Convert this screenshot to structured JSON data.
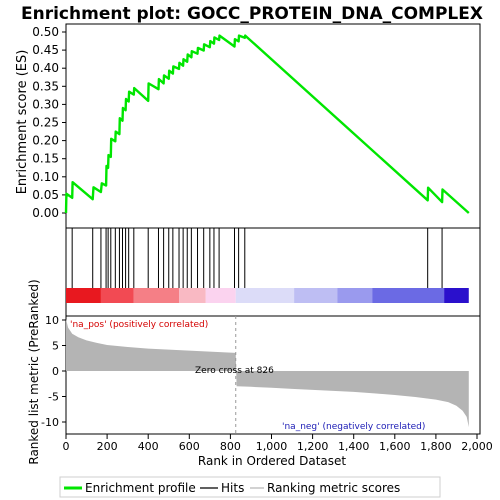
{
  "title": "Enrichment plot: GOCC_PROTEIN_DNA_COMPLEX",
  "chart_data": [
    {
      "type": "line",
      "panel": "enrichment",
      "ylabel": "Enrichment score (ES)",
      "ylim": [
        0,
        0.52
      ],
      "yticks": [
        0.0,
        0.05,
        0.1,
        0.15,
        0.2,
        0.25,
        0.3,
        0.35,
        0.4,
        0.45,
        0.5
      ],
      "ytick_labels": [
        "0.00",
        "0.05",
        "0.10",
        "0.15",
        "0.20",
        "0.25",
        "0.30",
        "0.35",
        "0.40",
        "0.45",
        "0.50"
      ],
      "xlim": [
        0,
        2000
      ],
      "line_color": "#00e600",
      "series": [
        {
          "x": [
            0,
            2,
            30,
            32,
            130,
            134,
            170,
            174,
            195,
            197,
            205,
            207,
            218,
            220,
            240,
            242,
            260,
            262,
            275,
            277,
            290,
            292,
            305,
            307,
            330,
            332,
            400,
            402,
            450,
            452,
            475,
            477,
            500,
            502,
            520,
            522,
            550,
            552,
            570,
            572,
            590,
            592,
            610,
            612,
            640,
            642,
            670,
            672,
            700,
            702,
            720,
            722,
            745,
            747,
            820,
            822,
            840,
            842,
            870,
            872,
            1760,
            1762,
            1830,
            1832,
            1960
          ],
          "y": [
            0.0,
            0.053,
            0.042,
            0.085,
            0.038,
            0.071,
            0.058,
            0.082,
            0.076,
            0.13,
            0.125,
            0.16,
            0.155,
            0.205,
            0.198,
            0.225,
            0.218,
            0.262,
            0.255,
            0.29,
            0.284,
            0.315,
            0.308,
            0.335,
            0.327,
            0.345,
            0.31,
            0.358,
            0.342,
            0.37,
            0.358,
            0.38,
            0.371,
            0.393,
            0.385,
            0.405,
            0.398,
            0.415,
            0.407,
            0.425,
            0.418,
            0.438,
            0.43,
            0.447,
            0.44,
            0.456,
            0.449,
            0.466,
            0.458,
            0.475,
            0.468,
            0.485,
            0.478,
            0.49,
            0.46,
            0.48,
            0.474,
            0.49,
            0.484,
            0.49,
            0.035,
            0.07,
            0.03,
            0.065,
            0.0
          ]
        }
      ]
    },
    {
      "type": "scatter",
      "panel": "hits",
      "hit_positions": [
        0,
        30,
        130,
        170,
        195,
        205,
        218,
        240,
        260,
        275,
        290,
        305,
        330,
        400,
        450,
        475,
        500,
        520,
        550,
        570,
        590,
        610,
        640,
        670,
        700,
        720,
        745,
        820,
        840,
        870,
        1760,
        1830
      ],
      "heat_bar": [
        {
          "start": 0,
          "end": 170,
          "color": "#e8181f"
        },
        {
          "start": 170,
          "end": 330,
          "color": "#f24a53"
        },
        {
          "start": 330,
          "end": 550,
          "color": "#f57f86"
        },
        {
          "start": 550,
          "end": 680,
          "color": "#f9b9c3"
        },
        {
          "start": 680,
          "end": 826,
          "color": "#fbd3ef"
        },
        {
          "start": 826,
          "end": 1110,
          "color": "#dcdcf8"
        },
        {
          "start": 1110,
          "end": 1320,
          "color": "#bebef3"
        },
        {
          "start": 1320,
          "end": 1490,
          "color": "#9a9aee"
        },
        {
          "start": 1490,
          "end": 1840,
          "color": "#6b6ae4"
        },
        {
          "start": 1840,
          "end": 1960,
          "color": "#2a10cc"
        }
      ]
    },
    {
      "type": "area",
      "panel": "ranked_metric",
      "ylabel": "Ranked list metric (PreRanked)",
      "xlabel": "Rank in Ordered Dataset",
      "ylim": [
        -12,
        12
      ],
      "yticks": [
        -10,
        -5,
        0,
        5,
        10
      ],
      "ytick_labels": [
        "-10",
        "-5",
        "0",
        "5",
        "10"
      ],
      "xticks": [
        0,
        200,
        400,
        600,
        800,
        1000,
        1200,
        1400,
        1600,
        1800,
        2000
      ],
      "xtick_labels": [
        "0",
        "200",
        "400",
        "600",
        "800",
        "1,000",
        "1,200",
        "1,400",
        "1,600",
        "1,800",
        "2,000"
      ],
      "fill_color": "#b4b4b4",
      "x": [
        0,
        10,
        30,
        60,
        100,
        150,
        200,
        300,
        400,
        500,
        600,
        700,
        800,
        826,
        830,
        900,
        1000,
        1100,
        1200,
        1300,
        1400,
        1500,
        1600,
        1700,
        1800,
        1860,
        1900,
        1930,
        1950,
        1960
      ],
      "values": [
        10.2,
        8.5,
        7.3,
        6.6,
        6.0,
        5.5,
        5.1,
        4.7,
        4.4,
        4.2,
        4.0,
        3.8,
        3.6,
        3.55,
        -3.0,
        -3.1,
        -3.3,
        -3.5,
        -3.7,
        -3.9,
        -4.1,
        -4.4,
        -4.7,
        -5.1,
        -5.6,
        -6.1,
        -6.8,
        -7.8,
        -9.0,
        -11.0
      ],
      "zero_cross": 826,
      "annotations": {
        "zero_cross": "Zero cross at 826",
        "pos": "'na_pos' (positively correlated)",
        "neg": "'na_neg' (negatively correlated)"
      }
    }
  ],
  "legend": {
    "items": [
      {
        "label": "Enrichment profile",
        "color": "#00e600"
      },
      {
        "label": "Hits",
        "color": "#000000"
      },
      {
        "label": "Ranking metric scores",
        "color": "#b4b4b4"
      }
    ]
  }
}
